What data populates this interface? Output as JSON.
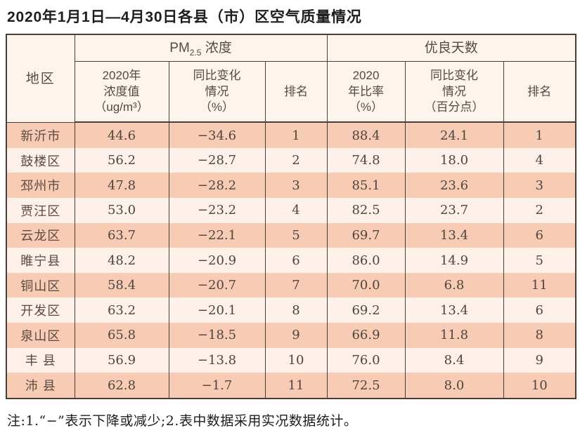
{
  "title": "2020年1月1日—4月30日各县（市）区空气质量情况",
  "table": {
    "header": {
      "region": "地区",
      "pm_group": {
        "prefix": "PM",
        "sub": "2.5",
        "suffix": " 浓度"
      },
      "good_group": "优良天数",
      "cols": {
        "pm_value": {
          "line1": "2020年",
          "line2": "浓度值",
          "line3": "（ug/m³）"
        },
        "pm_change": {
          "line1": "同比变化",
          "line2": "情况",
          "line3": "（%）"
        },
        "pm_rank": {
          "line1": "排名"
        },
        "ratio": {
          "line1": "2020",
          "line2": "年比率",
          "line3": "（%）"
        },
        "ratio_change": {
          "line1": "同比变化",
          "line2": "情况",
          "line3": "（百分点）"
        },
        "ratio_rank": {
          "line1": "排名"
        }
      }
    },
    "rows": [
      {
        "region": "新沂市",
        "pm_value": "44.6",
        "pm_change": "−34.6",
        "pm_rank": "1",
        "ratio": "88.4",
        "ratio_change": "24.1",
        "ratio_rank": "1"
      },
      {
        "region": "鼓楼区",
        "pm_value": "56.2",
        "pm_change": "−28.7",
        "pm_rank": "2",
        "ratio": "74.8",
        "ratio_change": "18.0",
        "ratio_rank": "4"
      },
      {
        "region": "邳州市",
        "pm_value": "47.8",
        "pm_change": "−28.2",
        "pm_rank": "3",
        "ratio": "85.1",
        "ratio_change": "23.6",
        "ratio_rank": "3"
      },
      {
        "region": "贾汪区",
        "pm_value": "53.0",
        "pm_change": "−23.2",
        "pm_rank": "4",
        "ratio": "82.5",
        "ratio_change": "23.7",
        "ratio_rank": "2"
      },
      {
        "region": "云龙区",
        "pm_value": "63.7",
        "pm_change": "−22.1",
        "pm_rank": "5",
        "ratio": "69.7",
        "ratio_change": "13.4",
        "ratio_rank": "6"
      },
      {
        "region": "睢宁县",
        "pm_value": "48.2",
        "pm_change": "−20.9",
        "pm_rank": "6",
        "ratio": "86.0",
        "ratio_change": "14.9",
        "ratio_rank": "5"
      },
      {
        "region": "铜山区",
        "pm_value": "58.4",
        "pm_change": "−20.7",
        "pm_rank": "7",
        "ratio": "70.0",
        "ratio_change": "6.8",
        "ratio_rank": "11"
      },
      {
        "region": "开发区",
        "pm_value": "63.2",
        "pm_change": "−20.1",
        "pm_rank": "8",
        "ratio": "69.2",
        "ratio_change": "13.4",
        "ratio_rank": "6"
      },
      {
        "region": "泉山区",
        "pm_value": "65.8",
        "pm_change": "−18.5",
        "pm_rank": "9",
        "ratio": "66.9",
        "ratio_change": "11.8",
        "ratio_rank": "8"
      },
      {
        "region": "丰 县",
        "pm_value": "56.9",
        "pm_change": "−13.8",
        "pm_rank": "10",
        "ratio": "76.0",
        "ratio_change": "8.4",
        "ratio_rank": "9"
      },
      {
        "region": "沛 县",
        "pm_value": "62.8",
        "pm_change": "−1.7",
        "pm_rank": "11",
        "ratio": "72.5",
        "ratio_change": "8.0",
        "ratio_rank": "10"
      }
    ]
  },
  "footnote": "注:1.“−”表示下降或减少;2.表中数据采用实况数据统计。",
  "colors": {
    "row_odd": "#f8cbb4",
    "row_even": "#fdf1ea",
    "header_bg": "#fdf4ee",
    "border": "#463e39",
    "text_title": "#1f1d1b",
    "text_header": "#544a41",
    "text_data": "#4e4540",
    "text_region": "#5a4b42"
  }
}
